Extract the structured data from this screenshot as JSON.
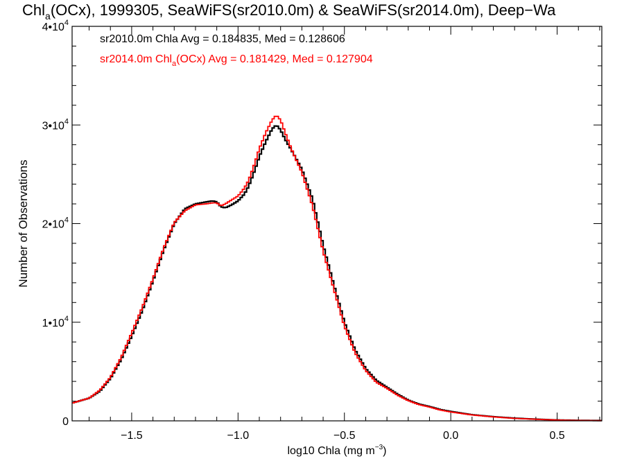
{
  "chart_data": {
    "type": "line",
    "title": {
      "pre": "Chl",
      "sub": "a",
      "post": "(OCx), 1999305, SeaWiFS(sr2010.0m) & SeaWiFS(sr2014.0m), Deep−Wa"
    },
    "xlabel": {
      "pre": "log10 Chla (mg m",
      "sup": "−3",
      "post": ")"
    },
    "ylabel": "Number of Observations",
    "xlim": [
      -1.78,
      0.71
    ],
    "ylim": [
      0,
      40000
    ],
    "x_ticks": [
      {
        "value": -1.5,
        "label": "−1.5"
      },
      {
        "value": -1.0,
        "label": "−1.0"
      },
      {
        "value": -0.5,
        "label": "−0.5"
      },
      {
        "value": 0.0,
        "label": "0.0"
      },
      {
        "value": 0.5,
        "label": "0.5"
      }
    ],
    "y_ticks": [
      {
        "value": 0,
        "base": "0",
        "exp": ""
      },
      {
        "value": 10000,
        "base": "1•10",
        "exp": "4"
      },
      {
        "value": 20000,
        "base": "2•10",
        "exp": "4"
      },
      {
        "value": 30000,
        "base": "3•10",
        "exp": "4"
      },
      {
        "value": 40000,
        "base": "4•10",
        "exp": "4"
      }
    ],
    "grid": false,
    "legend_position": "top-left",
    "legend": [
      {
        "pre": "sr2010.0m Chla Avg = 0.184835, Med = 0.128606",
        "sub": "",
        "post": "",
        "color": "#000000"
      },
      {
        "pre": "sr2014.0m Chl",
        "sub": "a",
        "post": "(OCx) Avg = 0.181429, Med = 0.127904",
        "color": "#ff0000"
      }
    ],
    "series": [
      {
        "color": "#000000",
        "x": [
          -1.78,
          -1.7,
          -1.65,
          -1.6,
          -1.55,
          -1.5,
          -1.45,
          -1.4,
          -1.35,
          -1.3,
          -1.25,
          -1.2,
          -1.15,
          -1.12,
          -1.1,
          -1.08,
          -1.06,
          -1.03,
          -1.0,
          -0.97,
          -0.95,
          -0.92,
          -0.9,
          -0.87,
          -0.84,
          -0.82,
          -0.8,
          -0.78,
          -0.75,
          -0.7,
          -0.65,
          -0.6,
          -0.55,
          -0.5,
          -0.45,
          -0.4,
          -0.35,
          -0.3,
          -0.25,
          -0.2,
          -0.15,
          -0.1,
          -0.05,
          0.0,
          0.1,
          0.2,
          0.3,
          0.4,
          0.5,
          0.6,
          0.71
        ],
        "y": [
          1800,
          2300,
          3000,
          4300,
          6200,
          8600,
          11200,
          14200,
          17300,
          20000,
          21500,
          22000,
          22200,
          22300,
          22200,
          21700,
          21600,
          21900,
          22300,
          23000,
          23800,
          25500,
          26800,
          28300,
          29600,
          30000,
          29500,
          28600,
          27500,
          25500,
          22500,
          17800,
          13800,
          10000,
          7200,
          5300,
          4100,
          3400,
          2700,
          2100,
          1700,
          1450,
          1150,
          950,
          620,
          420,
          270,
          170,
          90,
          50,
          30
        ]
      },
      {
        "color": "#ff0000",
        "x": [
          -1.78,
          -1.7,
          -1.65,
          -1.6,
          -1.55,
          -1.5,
          -1.45,
          -1.4,
          -1.35,
          -1.3,
          -1.25,
          -1.2,
          -1.15,
          -1.12,
          -1.1,
          -1.08,
          -1.06,
          -1.03,
          -1.0,
          -0.97,
          -0.95,
          -0.92,
          -0.9,
          -0.87,
          -0.84,
          -0.82,
          -0.8,
          -0.78,
          -0.75,
          -0.7,
          -0.65,
          -0.6,
          -0.55,
          -0.5,
          -0.45,
          -0.4,
          -0.35,
          -0.3,
          -0.25,
          -0.2,
          -0.15,
          -0.1,
          -0.05,
          0.0,
          0.1,
          0.2,
          0.3,
          0.4,
          0.5,
          0.6,
          0.71
        ],
        "y": [
          1800,
          2300,
          3100,
          4400,
          6400,
          8900,
          11500,
          14400,
          17500,
          20100,
          21300,
          21900,
          22000,
          22100,
          22100,
          21800,
          22000,
          22400,
          22800,
          23600,
          24400,
          26200,
          27600,
          29200,
          30500,
          31000,
          30500,
          29300,
          27600,
          25200,
          21800,
          17200,
          13400,
          9600,
          6900,
          5100,
          3900,
          3300,
          2600,
          2050,
          1650,
          1400,
          1100,
          900,
          600,
          400,
          250,
          160,
          80,
          40,
          20
        ]
      }
    ]
  }
}
